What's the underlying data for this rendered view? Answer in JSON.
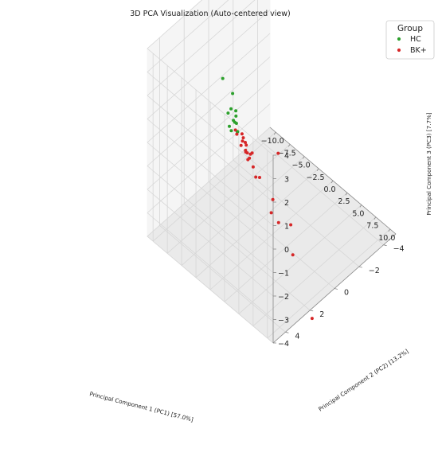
{
  "chart_data": {
    "type": "scatter",
    "title": "3D PCA Visualization (Auto-centered view)",
    "xlabel": "Principal Component 1 (PC1) [57.0%]",
    "ylabel": "Principal Component 2 (PC2) [13.2%]",
    "zlabel": "Principal Component 3 (PC3) [7.7%]",
    "xlim": [
      -11,
      11
    ],
    "ylim": [
      -5,
      5
    ],
    "zlim": [
      -4,
      4
    ],
    "x_ticks": [
      "−10.0",
      "−7.5",
      "−5.0",
      "−2.5",
      "0.0",
      "2.5",
      "5.0",
      "7.5",
      "10.0"
    ],
    "y_ticks": [
      "−4",
      "−2",
      "0",
      "2",
      "4"
    ],
    "z_ticks": [
      "−4",
      "−3",
      "−2",
      "−1",
      "0",
      "1",
      "2",
      "3",
      "4"
    ],
    "grid": true,
    "legend": {
      "title": "Group",
      "placement": "top-right"
    },
    "series": [
      {
        "name": "HC",
        "color": "#2ca02c",
        "points": [
          [
            -3.8,
            1.4,
            1.9
          ],
          [
            -3.9,
            1.1,
            1.0
          ],
          [
            -4.3,
            1.3,
            1.1
          ],
          [
            -4.1,
            1.2,
            0.6
          ],
          [
            -4.6,
            1.4,
            0.9
          ],
          [
            -4.5,
            0.9,
            0.3
          ],
          [
            -4.0,
            1.0,
            0.4
          ],
          [
            -4.8,
            1.2,
            0.2
          ],
          [
            -4.3,
            0.8,
            -0.1
          ],
          [
            -4.0,
            0.9,
            0.0
          ],
          [
            -4.9,
            1.0,
            -0.1
          ],
          [
            -4.3,
            0.9,
            0.6
          ],
          [
            -3.6,
            2.3,
            3.0
          ]
        ]
      },
      {
        "name": "BK+",
        "color": "#d62728",
        "points": [
          [
            -4.1,
            0.5,
            -0.3
          ],
          [
            -4.6,
            0.8,
            -0.1
          ],
          [
            -3.8,
            0.6,
            -0.5
          ],
          [
            -4.3,
            0.3,
            -0.6
          ],
          [
            -4.0,
            0.2,
            -0.9
          ],
          [
            -4.6,
            0.0,
            -1.0
          ],
          [
            -4.3,
            0.1,
            -1.3
          ],
          [
            -3.6,
            0.3,
            -1.1
          ],
          [
            -3.9,
            -0.1,
            -1.4
          ],
          [
            -3.4,
            0.0,
            -1.2
          ],
          [
            -5.0,
            0.5,
            -0.5
          ],
          [
            -4.9,
            0.2,
            -1.1
          ],
          [
            -4.3,
            -0.2,
            -1.7
          ],
          [
            -4.5,
            -0.6,
            -2.3
          ],
          [
            -5.0,
            -0.4,
            -2.0
          ],
          [
            -5.2,
            -0.3,
            -1.6
          ],
          [
            -3.8,
            -0.8,
            -2.7
          ],
          [
            -4.9,
            -1.0,
            -3.0
          ],
          [
            -3.0,
            -1.5,
            -3.8
          ],
          [
            -3.7,
            -1.7,
            -4.6
          ],
          [
            -3.7,
            -2.3,
            -5.3
          ],
          [
            -2.5,
            -2.9,
            -6.7
          ],
          [
            -1.7,
            -4.1,
            -9.8
          ],
          [
            1.8,
            0.3,
            0.0
          ],
          [
            -0.5,
            -1.8,
            -4.5
          ]
        ]
      }
    ]
  }
}
